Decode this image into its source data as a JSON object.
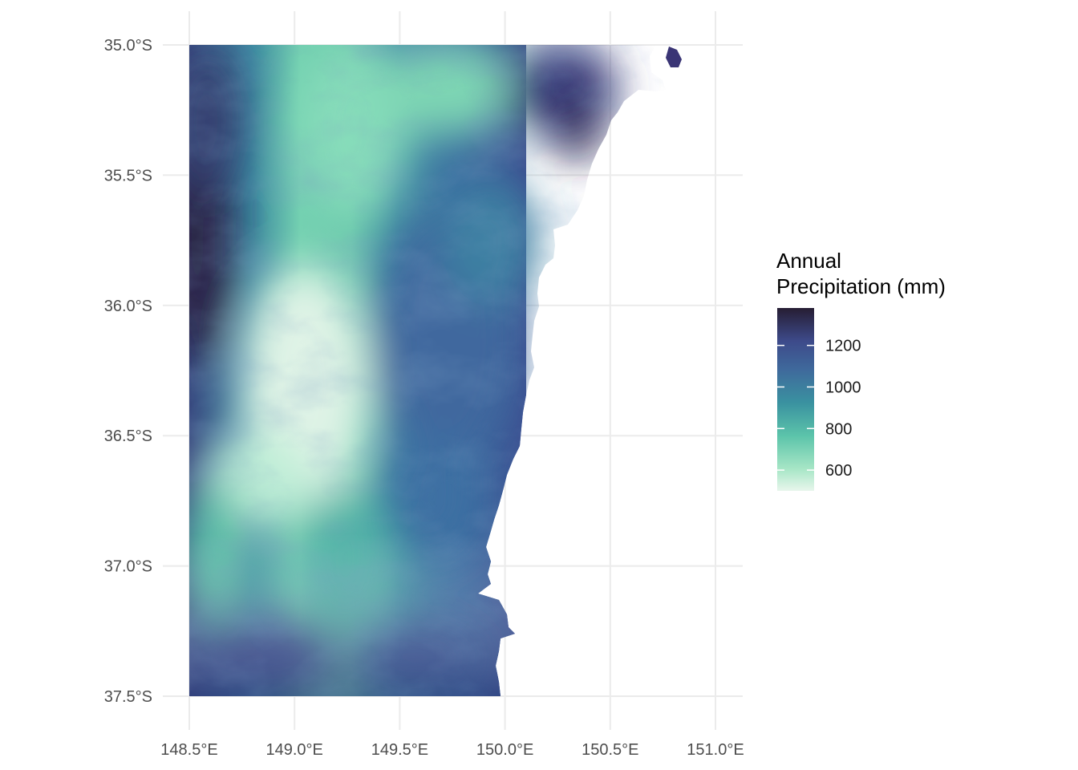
{
  "chart_data": {
    "type": "heatmap",
    "title": "",
    "xlabel": "",
    "ylabel": "",
    "x_ticks": [
      "148.5°E",
      "149.0°E",
      "149.5°E",
      "150.0°E",
      "150.5°E",
      "151.0°E"
    ],
    "y_ticks": [
      "35.0°S",
      "35.5°S",
      "36.0°S",
      "36.5°S",
      "37.0°S",
      "37.5°S"
    ],
    "xlim": [
      148.5,
      151.0
    ],
    "ylim": [
      -37.5,
      -35.0
    ],
    "grid": true,
    "legend": {
      "title_lines": [
        "Annual",
        "Precipitation (mm)"
      ],
      "placement": "right",
      "range": [
        500,
        1380
      ],
      "breaks": [
        {
          "value": 1200,
          "label": "1200"
        },
        {
          "value": 1000,
          "label": "1000"
        },
        {
          "value": 800,
          "label": "800"
        },
        {
          "value": 600,
          "label": "600"
        }
      ]
    },
    "colors": {
      "low": "#e8f6ec",
      "mid_low": "#6ad0ab",
      "mid": "#3a92a0",
      "mid_high": "#3f5f96",
      "high": "#3a3775",
      "highest": "#261d33"
    }
  }
}
